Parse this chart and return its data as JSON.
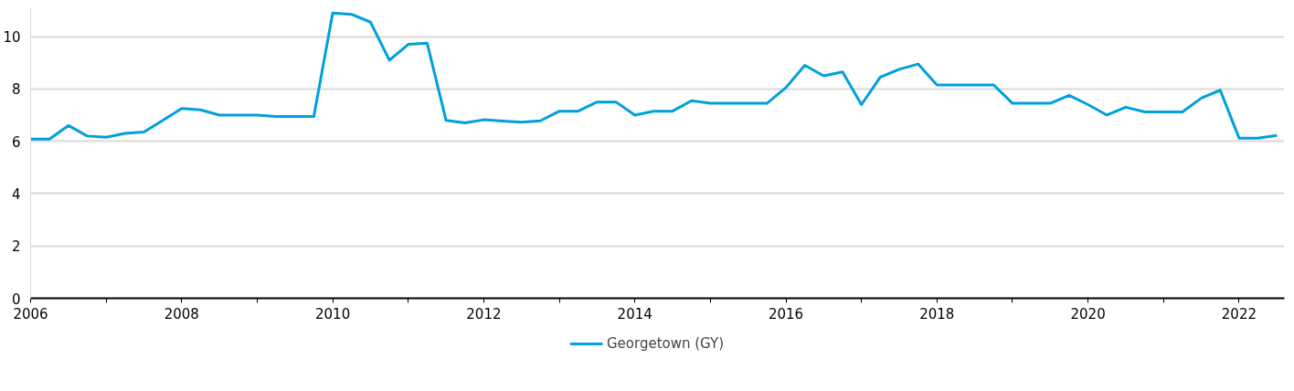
{
  "chart_data": {
    "type": "line",
    "x": [
      2006.0,
      2006.25,
      2006.5,
      2006.75,
      2007.0,
      2007.25,
      2007.5,
      2007.75,
      2008.0,
      2008.25,
      2008.5,
      2008.75,
      2009.0,
      2009.25,
      2009.5,
      2009.75,
      2010.0,
      2010.25,
      2010.5,
      2010.75,
      2011.0,
      2011.25,
      2011.5,
      2011.75,
      2012.0,
      2012.25,
      2012.5,
      2012.75,
      2013.0,
      2013.25,
      2013.5,
      2013.75,
      2014.0,
      2014.25,
      2014.5,
      2014.75,
      2015.0,
      2015.25,
      2015.5,
      2015.75,
      2016.0,
      2016.25,
      2016.5,
      2016.75,
      2017.0,
      2017.25,
      2017.5,
      2017.75,
      2018.0,
      2018.25,
      2018.5,
      2018.75,
      2019.0,
      2019.25,
      2019.5,
      2019.75,
      2020.0,
      2020.25,
      2020.5,
      2020.75,
      2021.0,
      2021.25,
      2021.5,
      2021.75,
      2022.0,
      2022.25,
      2022.5
    ],
    "series": [
      {
        "name": "Georgetown (GY)",
        "color": "#00a0dc",
        "values": [
          6.08,
          6.08,
          6.6,
          6.2,
          6.15,
          6.3,
          6.35,
          6.8,
          7.25,
          7.2,
          7.0,
          7.0,
          7.0,
          6.95,
          6.95,
          6.95,
          10.9,
          10.85,
          10.55,
          9.1,
          9.7,
          9.75,
          6.8,
          6.7,
          6.82,
          6.77,
          6.73,
          6.78,
          7.15,
          7.15,
          7.5,
          7.5,
          7.0,
          7.15,
          7.15,
          7.55,
          7.45,
          7.45,
          7.45,
          7.45,
          8.05,
          8.9,
          8.5,
          8.65,
          7.4,
          8.45,
          8.75,
          8.95,
          8.15,
          8.15,
          8.15,
          8.15,
          7.45,
          7.45,
          7.45,
          7.75,
          7.4,
          7.0,
          7.3,
          7.12,
          7.12,
          7.12,
          7.65,
          7.95,
          6.12,
          6.12,
          6.22
        ]
      }
    ],
    "xlim": [
      2006,
      2022.6
    ],
    "xticks": [
      2006,
      {
        "value": 2007,
        "label": null
      },
      2008,
      {
        "value": 2009,
        "label": null
      },
      2010,
      {
        "value": 2011,
        "label": null
      },
      2012,
      {
        "value": 2013,
        "label": null
      },
      2014,
      {
        "value": 2015,
        "label": null
      },
      2016,
      {
        "value": 2017,
        "label": null
      },
      2018,
      {
        "value": 2019,
        "label": null
      },
      2020,
      {
        "value": 2021,
        "label": null
      },
      2022
    ],
    "ylim": [
      0,
      11.1
    ],
    "yticks": [
      0,
      2,
      4,
      6,
      8,
      10
    ],
    "grid": "y",
    "legend": "bottom",
    "marker": "none",
    "line_style": "solid"
  }
}
